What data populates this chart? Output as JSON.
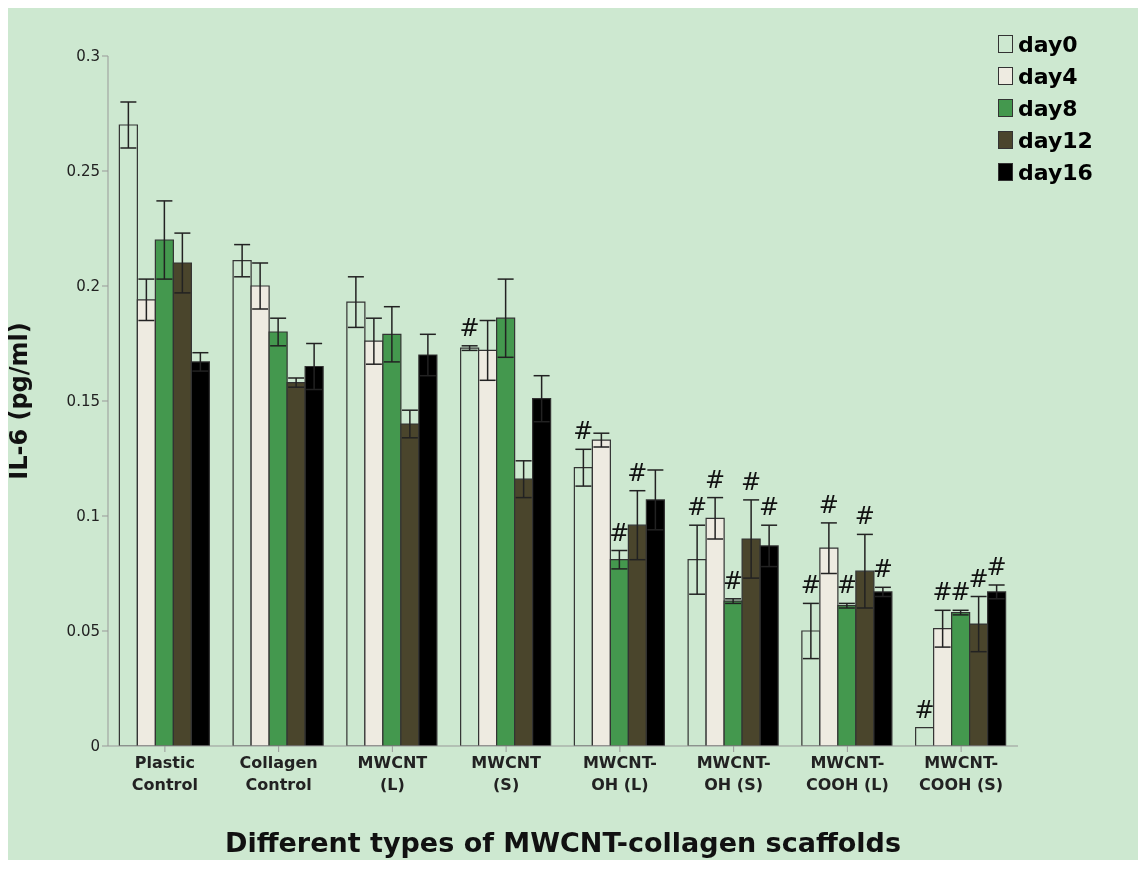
{
  "chart_data": {
    "type": "bar",
    "xlabel": "Different types of MWCNT-collagen scaffolds",
    "ylabel": "IL-6 (pg/ml)",
    "categories": [
      "Plastic Control",
      "Collagen Control",
      "MWCNT (L)",
      "MWCNT (S)",
      "MWCNT-OH (L)",
      "MWCNT-OH (S)",
      "MWCNT-COOH (L)",
      "MWCNT-COOH (S)"
    ],
    "series": [
      {
        "name": "day0",
        "color": "#cde8d0",
        "values": [
          0.27,
          0.211,
          0.193,
          0.173,
          0.121,
          0.081,
          0.05,
          0.008
        ],
        "errors": [
          0.01,
          0.007,
          0.011,
          0.001,
          0.008,
          0.015,
          0.012,
          null
        ],
        "value_labels": [
          null,
          null,
          null,
          "#",
          "#",
          "#",
          "#",
          "#"
        ]
      },
      {
        "name": "day4",
        "color": "#eeebe1",
        "values": [
          0.194,
          0.2,
          0.176,
          0.172,
          0.133,
          0.099,
          0.086,
          0.051
        ],
        "errors": [
          0.009,
          0.01,
          0.01,
          0.013,
          0.003,
          0.009,
          0.011,
          0.008
        ],
        "value_labels": [
          null,
          null,
          null,
          null,
          null,
          "#",
          "#",
          "#"
        ]
      },
      {
        "name": "day8",
        "color": "#44984e",
        "values": [
          0.22,
          0.18,
          0.179,
          0.186,
          0.081,
          0.063,
          0.061,
          0.058
        ],
        "errors": [
          0.017,
          0.006,
          0.012,
          0.017,
          0.004,
          0.001,
          0.001,
          0.001
        ],
        "value_labels": [
          null,
          null,
          null,
          null,
          "#",
          "#",
          "#",
          "#"
        ]
      },
      {
        "name": "day12",
        "color": "#4a452c",
        "values": [
          0.21,
          0.158,
          0.14,
          0.116,
          0.096,
          0.09,
          0.076,
          0.053
        ],
        "errors": [
          0.013,
          0.002,
          0.006,
          0.008,
          0.015,
          0.017,
          0.016,
          0.012
        ],
        "value_labels": [
          null,
          null,
          null,
          null,
          "#",
          "#",
          "#",
          "#"
        ]
      },
      {
        "name": "day16",
        "color": "#000000",
        "values": [
          0.167,
          0.165,
          0.17,
          0.151,
          0.107,
          0.087,
          0.067,
          0.067
        ],
        "errors": [
          0.004,
          0.01,
          0.009,
          0.01,
          0.013,
          0.009,
          0.002,
          0.003
        ],
        "value_labels": [
          null,
          null,
          null,
          null,
          null,
          "#",
          "#",
          "#"
        ]
      }
    ],
    "ylim": [
      0,
      0.3
    ],
    "yticks": [
      0,
      0.05,
      0.1,
      0.15,
      0.2,
      0.25,
      0.3
    ],
    "grid": false,
    "legend": "top right"
  }
}
